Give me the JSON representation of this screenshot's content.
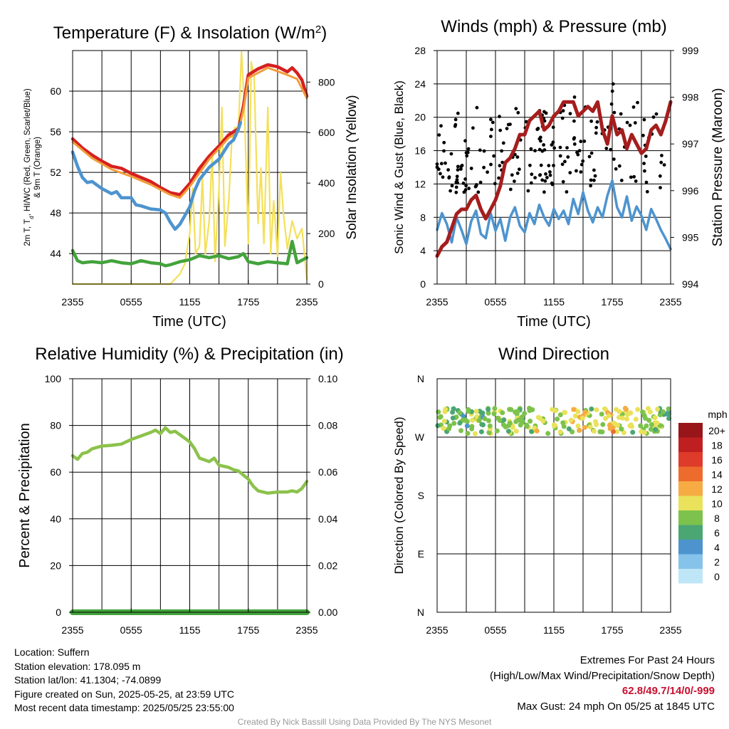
{
  "info": {
    "location": "Location: Suffern",
    "elevation": "Station elevation: 178.095 m",
    "latlon": "Station lat/lon: 41.1304; -74.0899",
    "created": "Figure created on Sun, 2025-05-25, at 23:59 UTC",
    "recent": "Most recent data timestamp: 2025/05/25 23:55:00"
  },
  "extremes": {
    "title": "Extremes For Past 24 Hours",
    "subtitle": "(High/Low/Max Wind/Precipitation/Snow Depth)",
    "values": "62.8/49.7/14/0/-999",
    "gust": "Max Gust: 24 mph On 05/25 at 1845 UTC"
  },
  "credit": "Created By Nick Bassill Using Data Provided By The NYS Mesonet",
  "chart_data": [
    {
      "type": "line",
      "title": "Temperature (F) & Insolation (W/m²)",
      "xlabel": "Time (UTC)",
      "ylabel": "2m T, Td, HI/WC (Red, Green, Scarlet/Blue) & 9m T (Orange)",
      "ylabel_right": "Solar Insolation (Yellow)",
      "x_ticks": [
        "2355",
        "0555",
        "1155",
        "1755",
        "2355"
      ],
      "ylim": [
        41,
        64
      ],
      "y_ticks": [
        44,
        48,
        52,
        56,
        60
      ],
      "ylim_right": [
        0,
        925
      ],
      "y_ticks_right": [
        0,
        200,
        400,
        600,
        800
      ],
      "x_hours": [
        0,
        2,
        4,
        6,
        8,
        10,
        12,
        14,
        16,
        18,
        20,
        22,
        24
      ],
      "series": [
        {
          "color": "#d6201f",
          "axis": "left",
          "x": [
            0,
            1,
            2,
            3,
            4,
            5,
            6,
            7,
            8,
            9,
            10,
            11,
            12,
            13,
            14,
            15,
            16,
            17,
            17.5,
            18,
            19,
            20,
            21,
            22,
            22.5,
            23,
            23.5,
            24
          ],
          "values": [
            55.3,
            54.4,
            53.7,
            53.1,
            52.6,
            52.4,
            51.9,
            51.5,
            51.1,
            50.5,
            50.0,
            49.8,
            50.9,
            52.4,
            53.6,
            54.6,
            55.7,
            56.3,
            58.5,
            61.6,
            62.2,
            62.6,
            62.4,
            61.9,
            62.3,
            61.8,
            61.1,
            59.5
          ]
        },
        {
          "color": "#f29d3a",
          "axis": "left",
          "x": [
            0,
            2,
            4,
            6,
            8,
            10,
            11,
            12,
            14,
            16,
            17,
            17.5,
            18,
            20,
            22,
            23,
            24
          ],
          "values": [
            55.0,
            53.4,
            52.3,
            51.6,
            50.8,
            49.8,
            49.5,
            50.6,
            53.3,
            55.4,
            56.0,
            58.2,
            61.3,
            62.3,
            61.6,
            61.2,
            59.3
          ]
        },
        {
          "color": "#4d94cf",
          "axis": "left",
          "x": [
            0,
            0.5,
            1,
            1.5,
            2,
            3,
            4,
            4.5,
            5,
            6,
            6.5,
            7,
            8,
            9,
            9.5,
            10,
            10.5,
            11,
            12,
            12.5,
            13,
            14,
            15,
            16,
            16.5,
            17,
            17.2
          ],
          "values": [
            54.0,
            52.6,
            51.5,
            51.0,
            51.1,
            50.4,
            49.9,
            50.1,
            49.5,
            49.5,
            48.8,
            48.7,
            48.4,
            48.3,
            48.0,
            47.1,
            46.4,
            46.9,
            48.6,
            50.2,
            51.3,
            52.5,
            53.3,
            54.8,
            55.2,
            56.3,
            56.9
          ]
        },
        {
          "color": "#43a33b",
          "axis": "left",
          "x": [
            0,
            0.5,
            1,
            2,
            3,
            4,
            5,
            6,
            7,
            8,
            9,
            9.5,
            10,
            11,
            12,
            13,
            14,
            15,
            16,
            17,
            17.5,
            18,
            19,
            20,
            21,
            22,
            22.5,
            23,
            24
          ],
          "values": [
            44.3,
            43.3,
            43.1,
            43.2,
            43.1,
            43.3,
            43.1,
            43.0,
            43.3,
            43.1,
            43.0,
            42.8,
            42.9,
            43.2,
            43.4,
            43.8,
            43.6,
            43.8,
            43.5,
            43.7,
            44.0,
            43.2,
            43.0,
            43.2,
            43.1,
            43.0,
            45.2,
            43.1,
            43.6
          ]
        },
        {
          "color": "#f4e05a",
          "axis": "right",
          "x": [
            0,
            10,
            11,
            11.5,
            12,
            12.3,
            12.6,
            13,
            13.3,
            13.6,
            14,
            14.3,
            14.6,
            15,
            15.3,
            15.6,
            16,
            16.3,
            16.6,
            17,
            17.3,
            17.6,
            18,
            18.3,
            18.6,
            19,
            19.3,
            19.6,
            20,
            20.3,
            20.6,
            21,
            21.3,
            21.6,
            22,
            22.5,
            23,
            23.5,
            24
          ],
          "values": [
            0,
            0,
            40,
            80,
            200,
            380,
            120,
            150,
            420,
            120,
            250,
            520,
            90,
            380,
            700,
            150,
            330,
            560,
            620,
            620,
            920,
            700,
            160,
            880,
            820,
            240,
            460,
            160,
            700,
            120,
            330,
            110,
            440,
            280,
            140,
            250,
            180,
            220,
            20
          ]
        }
      ]
    },
    {
      "type": "line",
      "title": "Winds (mph) & Pressure (mb)",
      "xlabel": "Time (UTC)",
      "ylabel": "Sonic Wind & Gust (Blue, Black)",
      "ylabel_right": "Station Pressure (Maroon)",
      "x_ticks": [
        "2355",
        "0555",
        "1155",
        "1755",
        "2355"
      ],
      "ylim": [
        0,
        28
      ],
      "y_ticks": [
        0,
        4,
        8,
        12,
        16,
        20,
        24,
        28
      ],
      "ylim_right": [
        994,
        999
      ],
      "y_ticks_right": [
        994,
        995,
        996,
        997,
        998,
        999
      ],
      "series": [
        {
          "color": "#4d94cf",
          "axis": "left",
          "x": [
            0,
            0.5,
            1,
            1.5,
            2,
            2.5,
            3,
            3.5,
            4,
            4.5,
            5,
            5.5,
            6,
            6.5,
            7,
            7.5,
            8,
            8.5,
            9,
            9.5,
            10,
            10.5,
            11,
            11.5,
            12,
            12.5,
            13,
            13.5,
            14,
            14.5,
            15,
            15.5,
            16,
            16.5,
            17,
            17.5,
            18,
            18.5,
            19,
            19.5,
            20,
            20.5,
            21,
            21.5,
            22,
            22.5,
            23,
            23.5,
            24
          ],
          "values": [
            6.5,
            8.5,
            7.2,
            5.0,
            8.0,
            6.5,
            4.8,
            7.5,
            8.8,
            6.0,
            5.5,
            8.5,
            6.4,
            7.8,
            5.2,
            8.0,
            9.2,
            7.0,
            6.2,
            8.5,
            7.2,
            9.5,
            8.0,
            7.0,
            9.0,
            7.8,
            8.8,
            7.2,
            10.2,
            8.4,
            11.0,
            8.8,
            7.4,
            9.2,
            8.0,
            10.6,
            12.4,
            9.2,
            8.0,
            10.5,
            7.6,
            9.3,
            8.2,
            6.5,
            9.0,
            7.8,
            6.5,
            5.4,
            4.2
          ]
        },
        {
          "color": "#a51d1d",
          "axis": "right",
          "x": [
            0,
            0.5,
            1,
            1.5,
            2,
            2.5,
            3,
            3.5,
            4,
            4.5,
            5,
            5.5,
            6,
            6.5,
            7,
            7.5,
            8,
            8.5,
            9,
            9.5,
            10,
            10.5,
            11,
            11.5,
            12,
            12.5,
            13,
            13.5,
            14,
            14.5,
            15,
            15.5,
            16,
            16.5,
            17,
            17.5,
            18,
            18.5,
            19,
            19.5,
            20,
            20.5,
            21,
            21.5,
            22,
            22.5,
            23,
            23.5,
            24
          ],
          "values": [
            994.6,
            994.8,
            994.9,
            995.2,
            995.5,
            995.6,
            995.6,
            995.8,
            995.9,
            995.6,
            995.4,
            995.6,
            995.8,
            996.1,
            996.6,
            996.7,
            996.9,
            997.2,
            997.2,
            997.5,
            997.6,
            997.7,
            997.3,
            997.4,
            997.6,
            997.7,
            997.9,
            997.9,
            997.9,
            997.6,
            997.7,
            997.8,
            997.7,
            997.9,
            997.3,
            997.0,
            997.6,
            997.2,
            997.3,
            996.9,
            997.2,
            997.0,
            996.8,
            996.9,
            997.3,
            997.4,
            997.2,
            997.5,
            997.9
          ]
        }
      ]
    },
    {
      "type": "line",
      "title": "Relative Humidity (%) & Precipitation (in)",
      "ylabel": "Percent & Precipitation",
      "x_ticks": [
        "2355",
        "0555",
        "1155",
        "1755",
        "2355"
      ],
      "ylim": [
        0,
        100
      ],
      "y_ticks": [
        0,
        20,
        40,
        60,
        80,
        100
      ],
      "ylim_right": [
        0,
        0.1
      ],
      "y_ticks_right": [
        "0.00",
        "0.02",
        "0.04",
        "0.06",
        "0.08",
        "0.10"
      ],
      "series": [
        {
          "color": "#8cc24b",
          "axis": "left",
          "x": [
            0,
            0.5,
            1,
            1.5,
            2,
            3,
            4,
            5,
            5.5,
            6,
            7,
            8,
            8.5,
            9,
            9.5,
            10,
            10.5,
            11,
            12,
            12.5,
            13,
            14,
            14.5,
            15,
            16,
            16.5,
            17,
            18,
            18.5,
            19,
            20,
            21,
            22,
            22.5,
            23,
            23.5,
            24
          ],
          "values": [
            67,
            65.5,
            68,
            68.5,
            70,
            71.2,
            71.5,
            72,
            73,
            74,
            75.5,
            77,
            78,
            76.5,
            79,
            77,
            77.5,
            76,
            73,
            70,
            66,
            64.5,
            66,
            63,
            62,
            61,
            60.5,
            57,
            54,
            52,
            51,
            51.5,
            51.5,
            52,
            51.5,
            53,
            56
          ]
        },
        {
          "color": "#43a33b",
          "axis": "left",
          "x": [
            0,
            24
          ],
          "values": [
            0,
            0
          ]
        }
      ]
    },
    {
      "type": "scatter",
      "title": "Wind Direction",
      "ylabel": "Direction (Colored By Speed)",
      "x_ticks": [
        "2355",
        "0555",
        "1155",
        "1755",
        "2355"
      ],
      "y_ticks": [
        "N",
        "E",
        "S",
        "W",
        "N"
      ],
      "legend": {
        "title": "mph",
        "labels": [
          "0",
          "2",
          "4",
          "6",
          "8",
          "10",
          "12",
          "14",
          "16",
          "18",
          "20+"
        ],
        "colors": [
          "#bfe6f7",
          "#86c3ea",
          "#4d94cf",
          "#4aa673",
          "#7cc24c",
          "#e9e25a",
          "#f6ab43",
          "#ee6b2e",
          "#de3b2a",
          "#c01f22",
          "#98151a"
        ]
      }
    }
  ]
}
